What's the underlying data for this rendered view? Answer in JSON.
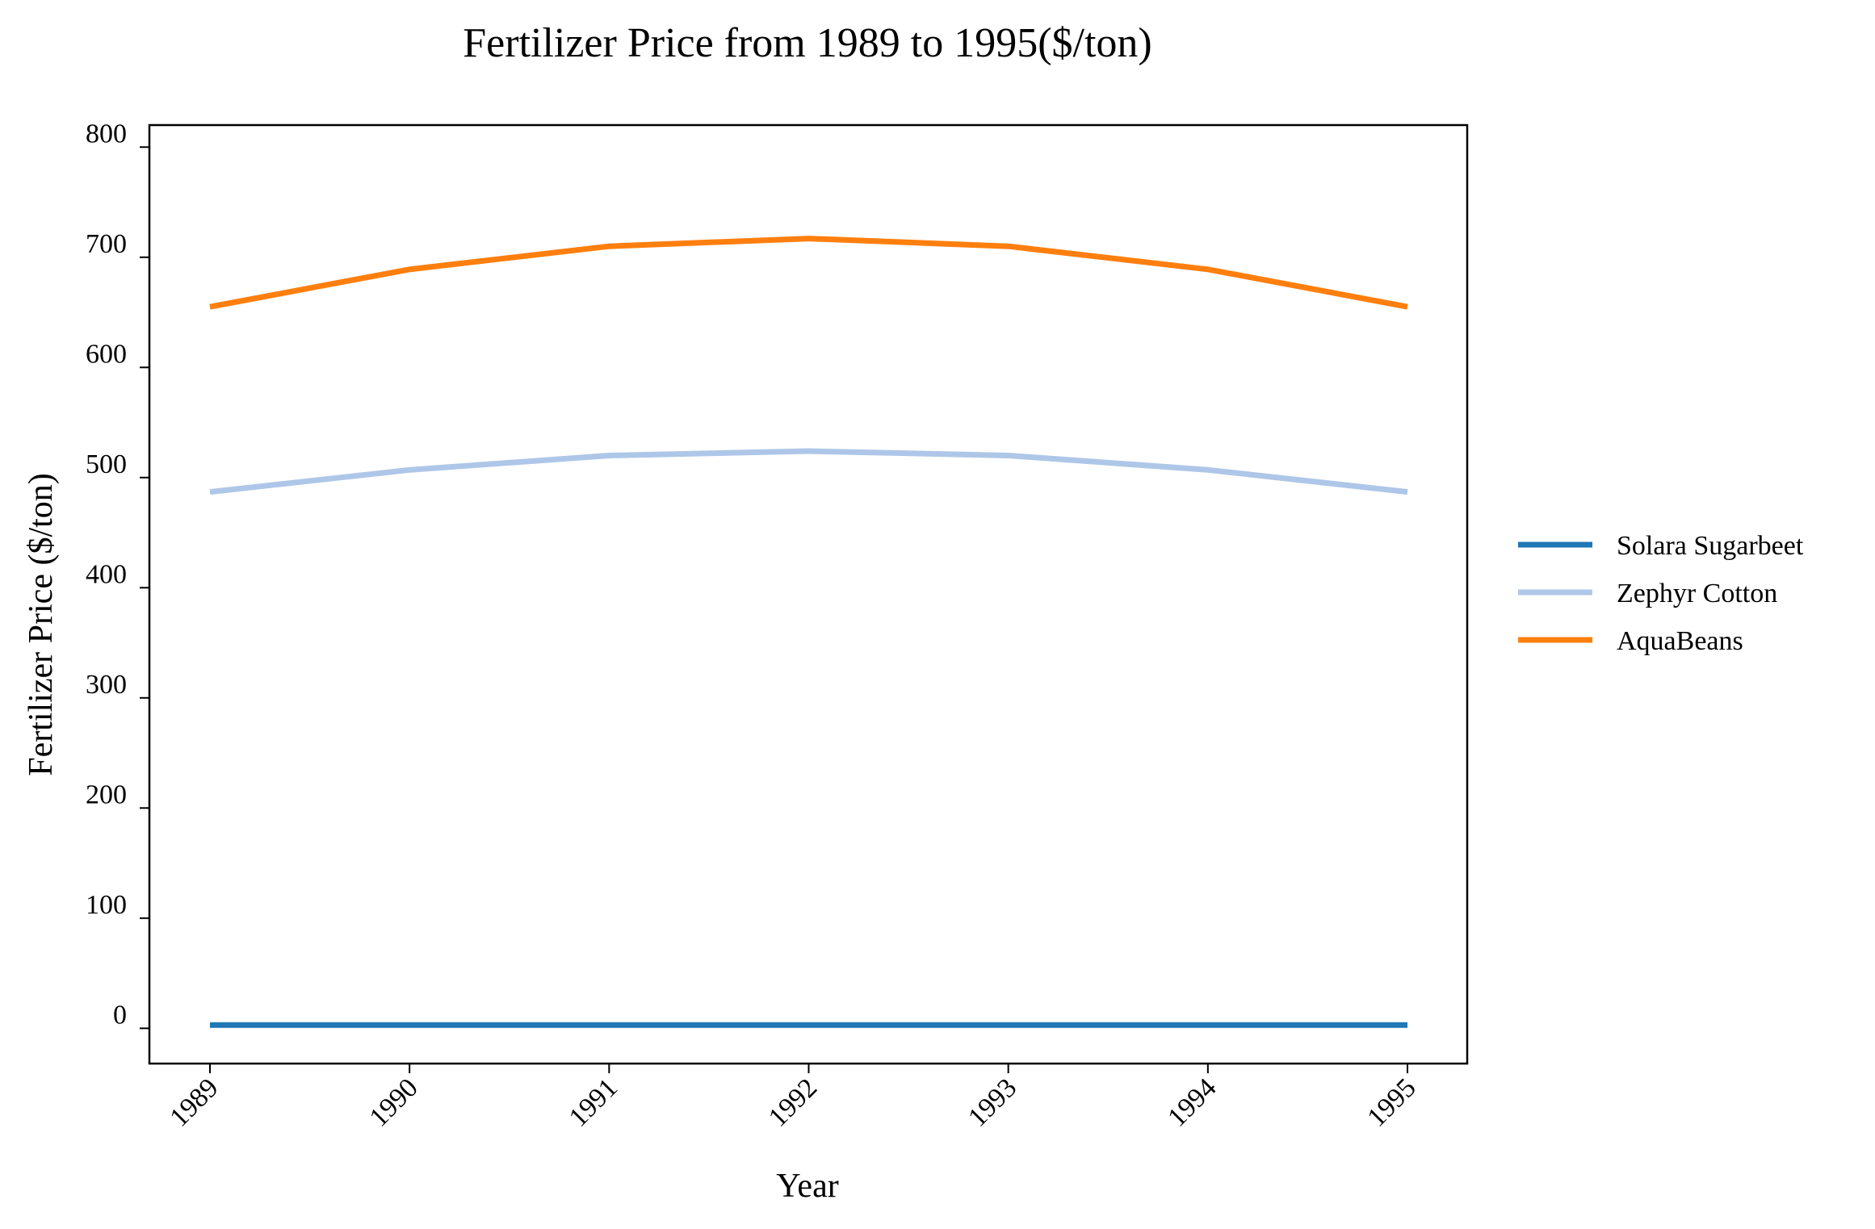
{
  "chart_data": {
    "type": "line",
    "title": "Fertilizer Price from 1989 to 1995($/ton)",
    "xlabel": "Year",
    "ylabel": "Fertilizer Price ($/ton)",
    "categories": [
      "1989",
      "1990",
      "1991",
      "1992",
      "1993",
      "1994",
      "1995"
    ],
    "yticks": [
      0,
      100,
      200,
      300,
      400,
      500,
      600,
      700,
      800
    ],
    "ylim": [
      -32,
      820
    ],
    "grid": false,
    "legend_position": "right",
    "series": [
      {
        "name": "Solara Sugarbeet",
        "color": "#1f77b4",
        "values": [
          3,
          3,
          3,
          3,
          3,
          3,
          3
        ]
      },
      {
        "name": "Zephyr Cotton",
        "color": "#aec7e8",
        "values": [
          487,
          507,
          520,
          524,
          520,
          507,
          487
        ]
      },
      {
        "name": "AquaBeans",
        "color": "#ff7f0e",
        "values": [
          655,
          689,
          710,
          717,
          710,
          689,
          655
        ]
      }
    ]
  }
}
